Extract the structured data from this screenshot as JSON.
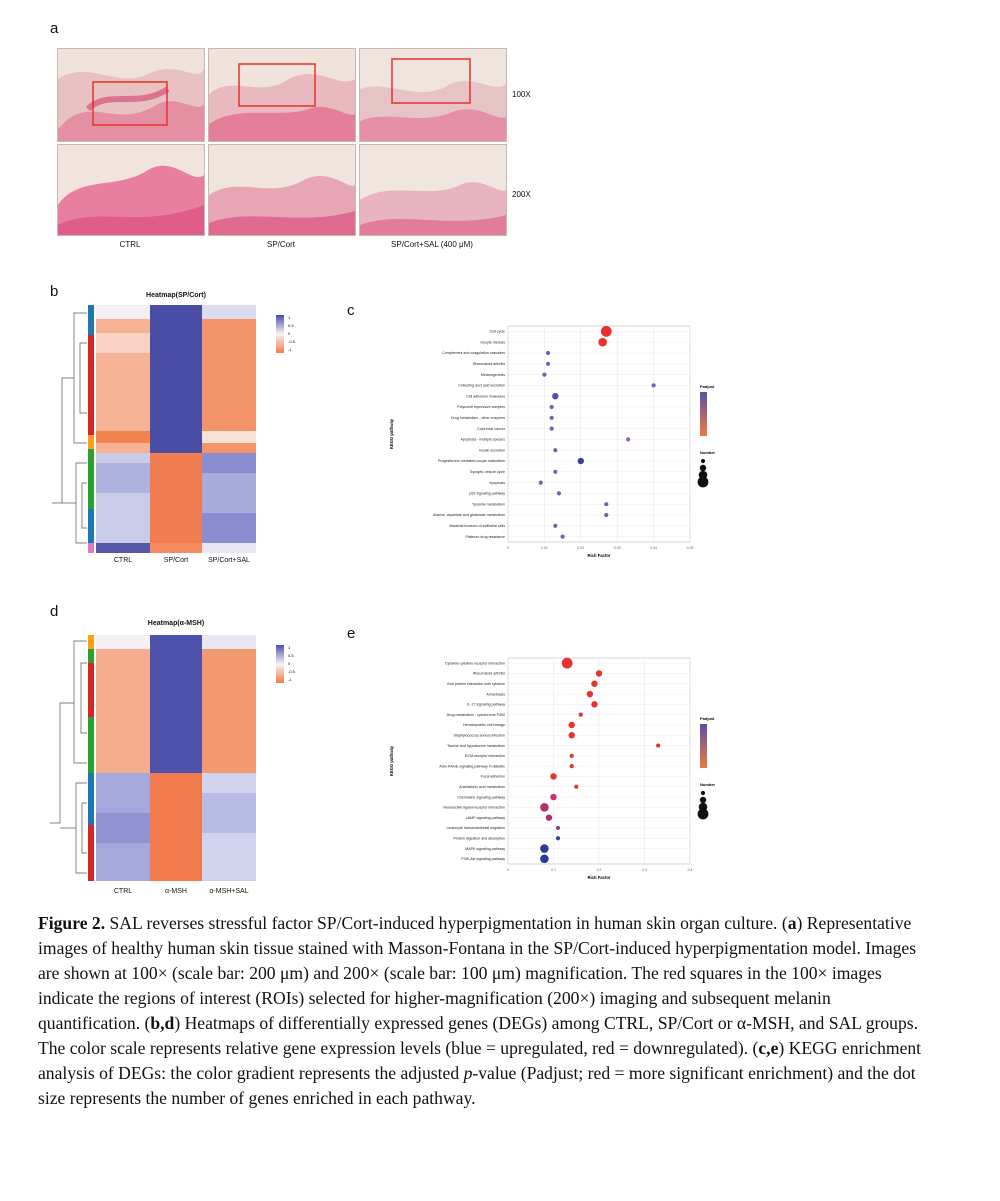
{
  "panel_letters": {
    "a": "a",
    "b": "b",
    "c": "c",
    "d": "d",
    "e": "e"
  },
  "panel_a": {
    "groups": [
      "CTRL",
      "SP/Cort",
      "SP/Cort+SAL (400 μM)"
    ],
    "magnifications": [
      "100X",
      "200X"
    ]
  },
  "panel_b": {
    "title": "Heatmap(SP/Cort)",
    "columns": [
      "CTRL",
      "SP/Cort",
      "SP/Cort+SAL"
    ],
    "scale_ticks": [
      "1",
      "0.5",
      "0",
      "-0.5",
      "-1"
    ]
  },
  "panel_d": {
    "title": "Heatmap(α-MSH)",
    "columns": [
      "CTRL",
      "α-MSH",
      "α-MSH+SAL"
    ],
    "scale_ticks": [
      "1",
      "0.5",
      "0",
      "-0.5",
      "-1"
    ]
  },
  "panel_c": {
    "ylabel": "KEGG pathway",
    "xlabel": "Rich Factor",
    "legend_padjust_title": "Padjust",
    "legend_number_title": "Number",
    "colors": {
      "low": "#e8332c",
      "high": "#3c3fa0"
    }
  },
  "panel_e": {
    "ylabel": "KEGG pathway",
    "xlabel": "Rich Factor",
    "legend_padjust_title": "Padjust",
    "legend_number_title": "Number"
  },
  "chart_data": [
    {
      "panel": "c",
      "type": "scatter",
      "xlabel": "Rich Factor",
      "ylabel": "KEGG pathway",
      "xlim": [
        0.0,
        0.05
      ],
      "categories": [
        "Cell cycle",
        "Oocyte meiosis",
        "Complement and coagulation cascades",
        "Rheumatoid arthritis",
        "Melanogenesis",
        "Collecting duct acid secretion",
        "Cell adhesion molecules",
        "Polycomb repressive complex",
        "Drug metabolism - other enzymes",
        "Colorectal cancer",
        "Apoptosis - multiple species",
        "Insulin secretion",
        "Progesterone-mediated oocyte maturation",
        "Synaptic vesicle cycle",
        "Apoptosis",
        "p53 signaling pathway",
        "Tyrosine metabolism",
        "Alanine, aspartate and glutamate metabolism",
        "Bacterial invasion of epithelial cells",
        "Platinum drug resistance"
      ],
      "values": [
        0.027,
        0.026,
        0.011,
        0.011,
        0.01,
        0.04,
        0.013,
        0.012,
        0.012,
        0.012,
        0.033,
        0.013,
        0.02,
        0.013,
        0.009,
        0.014,
        0.027,
        0.027,
        0.013,
        0.015
      ],
      "sizes": [
        4,
        3,
        1,
        1,
        1,
        1,
        2,
        1,
        1,
        1,
        1,
        1,
        2,
        1,
        1,
        1,
        1,
        1,
        1,
        1
      ],
      "colors": [
        "#e8332c",
        "#e8332c",
        "#6f62b0",
        "#6f62b0",
        "#6f62b0",
        "#6f62b0",
        "#5250a8",
        "#6f62b0",
        "#6f62b0",
        "#6f62b0",
        "#9061a8",
        "#6f62b0",
        "#3c3fa0",
        "#6f62b0",
        "#6f62b0",
        "#6f62b0",
        "#6f62b0",
        "#6f62b0",
        "#6f62b0",
        "#6f62b0"
      ]
    },
    {
      "panel": "e",
      "type": "scatter",
      "xlabel": "Rich Factor",
      "ylabel": "KEGG pathway",
      "xlim": [
        0.0,
        0.4
      ],
      "categories": [
        "Cytokine-cytokine receptor interaction",
        "Rheumatoid arthritis",
        "Viral protein interaction with cytokine",
        "Amoebiasis",
        "IL-17 signaling pathway",
        "Drug metabolism - cytochrome P450",
        "Hematopoietic cell lineage",
        "Staphylococcus aureus infection",
        "Taurine and hypotaurine metabolism",
        "ECM-receptor interaction",
        "AGE-RAGE signaling pathway in diabetic",
        "Focal adhesion",
        "Arachidonic acid metabolism",
        "Chemokine signaling pathway",
        "Neuroactive ligand-receptor interaction",
        "cAMP signaling pathway",
        "Leukocyte transendothelial migration",
        "Protein digestion and absorption",
        "MAPK signaling pathway",
        "PI3K-Akt signaling pathway"
      ],
      "values": [
        0.13,
        0.2,
        0.19,
        0.18,
        0.19,
        0.16,
        0.14,
        0.14,
        0.33,
        0.14,
        0.14,
        0.1,
        0.15,
        0.1,
        0.08,
        0.09,
        0.11,
        0.11,
        0.08,
        0.08
      ],
      "sizes": [
        4,
        2,
        2,
        2,
        2,
        1,
        2,
        2,
        1,
        1,
        1,
        2,
        1,
        2,
        3,
        2,
        1,
        1,
        3,
        3
      ],
      "colors": [
        "#e8332c",
        "#e8332c",
        "#e8332c",
        "#e8332c",
        "#e8332c",
        "#e8332c",
        "#e8332c",
        "#e8332c",
        "#e8332c",
        "#e8332c",
        "#e8332c",
        "#e0322f",
        "#e8332c",
        "#d4305a",
        "#b0306e",
        "#b0306e",
        "#9a3a8a",
        "#3c3fa0",
        "#2b3d90",
        "#2b3d90"
      ]
    }
  ],
  "caption": {
    "label": "Figure 2.",
    "text1": " SAL reverses stressful factor SP/Cort-induced hyperpigmentation in human skin organ culture. (",
    "a": "a",
    "text2": ") Representative images of healthy human skin tissue stained with Masson-Fontana in the SP/Cort-induced hyperpigmentation model. Images are shown at 100× (scale bar: 200 μm) and 200× (scale bar: 100 μm) magnification. The red squares in the 100× images indicate the regions of interest (ROIs) selected for higher-magnification (200×) imaging and subsequent melanin quantification. (",
    "bd": "b,d",
    "text3": ") Heatmaps of differentially expressed genes (DEGs) among CTRL, SP/Cort or α-MSH, and SAL groups. The color scale represents relative gene expression levels (blue = upregulated, red = downregulated). (",
    "ce": "c,e",
    "text4": ") KEGG enrichment analysis of DEGs: the color gradient represents the adjusted ",
    "p": "p",
    "text5": "-value (Padjust; red = more significant enrichment) and the dot size represents the number of genes enriched in each pathway."
  }
}
